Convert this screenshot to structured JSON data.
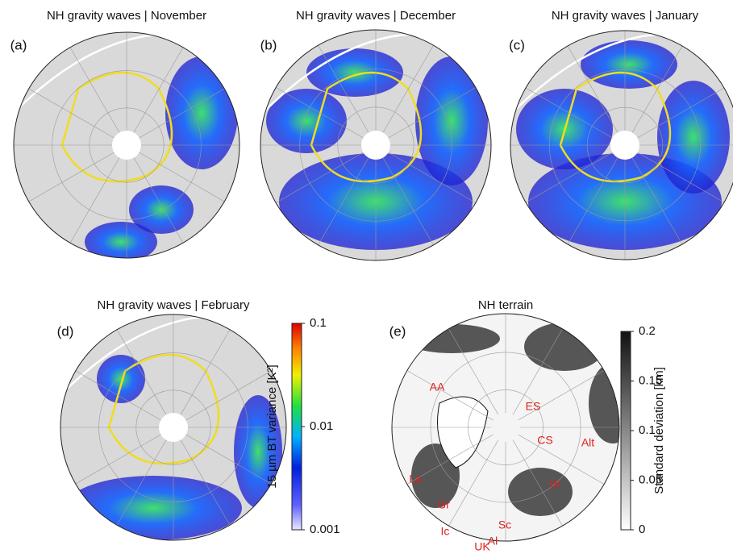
{
  "panels": [
    {
      "title": "NH gravity waves | November",
      "label": "(a)"
    },
    {
      "title": "NH gravity waves | December",
      "label": "(b)"
    },
    {
      "title": "NH gravity waves | January",
      "label": "(c)"
    },
    {
      "title": "NH gravity waves | February",
      "label": "(d)"
    },
    {
      "title": "NH terrain",
      "label": "(e)",
      "regions": [
        "ES",
        "AA",
        "CS",
        "Alt",
        "La",
        "Gr",
        "Ur",
        "Ic",
        "Sc",
        "UK",
        "Al"
      ]
    }
  ],
  "colorbars": [
    {
      "label": "15 µm BT variance [K²]",
      "lim": [
        0.001,
        0.1
      ],
      "ticks": [
        0.001,
        0.01,
        0.1
      ],
      "scale": "log"
    },
    {
      "label": "Standard deviation [km]",
      "lim": [
        0,
        0.2
      ],
      "ticks": [
        0,
        0.05,
        0.1,
        0.15,
        0.2
      ],
      "scale": "linear"
    }
  ]
}
